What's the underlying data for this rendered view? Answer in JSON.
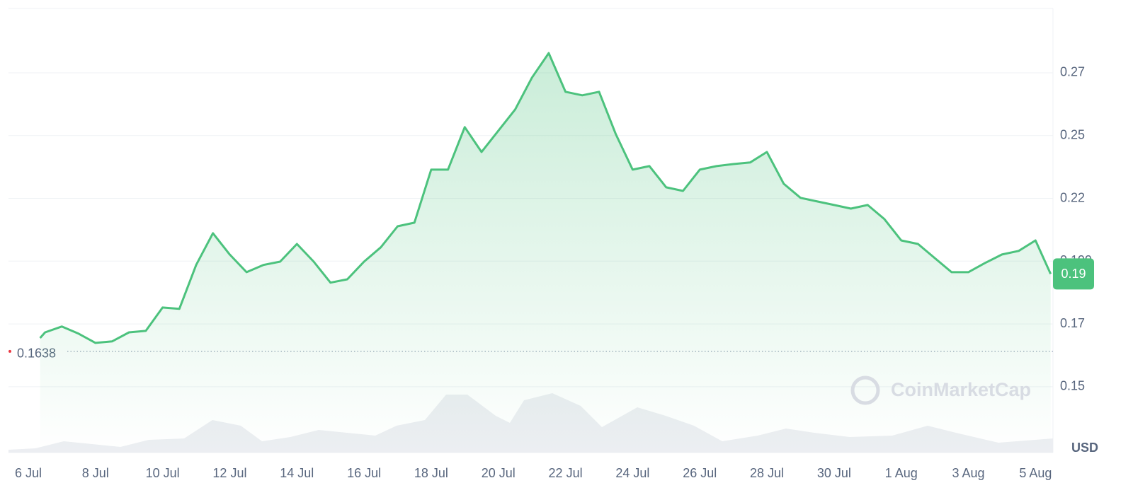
{
  "chart_data": {
    "type": "area",
    "watermark": "CoinMarketCap",
    "currency": "USD",
    "color": "#4cc27d",
    "grid": true,
    "xlim": [
      -0.59,
      30.52
    ],
    "xticks": [
      {
        "value": 0,
        "label": "6 Jul"
      },
      {
        "value": 2,
        "label": "8 Jul"
      },
      {
        "value": 4,
        "label": "10 Jul"
      },
      {
        "value": 6,
        "label": "12 Jul"
      },
      {
        "value": 8,
        "label": "14 Jul"
      },
      {
        "value": 10,
        "label": "16 Jul"
      },
      {
        "value": 12,
        "label": "18 Jul"
      },
      {
        "value": 14,
        "label": "20 Jul"
      },
      {
        "value": 16,
        "label": "22 Jul"
      },
      {
        "value": 18,
        "label": "24 Jul"
      },
      {
        "value": 20,
        "label": "26 Jul"
      },
      {
        "value": 22,
        "label": "28 Jul"
      },
      {
        "value": 24,
        "label": "30 Jul"
      },
      {
        "value": 26,
        "label": "1 Aug"
      },
      {
        "value": 28,
        "label": "3 Aug"
      },
      {
        "value": 30,
        "label": "5 Aug"
      }
    ],
    "ylim": [
      0.1243,
      0.2976
    ],
    "yticks": [
      0.15,
      {
        "value": 0.1745,
        "label": "0.17"
      },
      0.199,
      {
        "value": 0.2235,
        "label": "0.22"
      },
      {
        "value": 0.248,
        "label": "0.25"
      },
      {
        "value": 0.2725,
        "label": "0.27"
      }
    ],
    "reference_line": 0.1638,
    "price_tag": {
      "value": 0.194,
      "label": "0.19"
    },
    "x": [
      0.35,
      0.5,
      1,
      1.5,
      2,
      2.5,
      3,
      3.5,
      4,
      4.5,
      5,
      5.5,
      6,
      6.5,
      7,
      7.5,
      8,
      8.5,
      9,
      9.5,
      10,
      10.5,
      11,
      11.5,
      12,
      12.5,
      13,
      13.5,
      14,
      14.5,
      15,
      15.5,
      16,
      16.5,
      17,
      17.5,
      18,
      18.5,
      19,
      19.5,
      20,
      20.5,
      21,
      21.5,
      22,
      22.5,
      23,
      23.5,
      24,
      24.5,
      25,
      25.5,
      26,
      26.5,
      27,
      27.5,
      28,
      28.5,
      29,
      29.5,
      30,
      30.45
    ],
    "values": [
      0.169,
      0.1712,
      0.1735,
      0.1707,
      0.1671,
      0.1677,
      0.1712,
      0.1718,
      0.1809,
      0.1804,
      0.1975,
      0.2099,
      0.2016,
      0.1947,
      0.1975,
      0.1988,
      0.2057,
      0.1988,
      0.1906,
      0.1919,
      0.1988,
      0.2044,
      0.2126,
      0.214,
      0.2347,
      0.2347,
      0.2513,
      0.2416,
      0.2499,
      0.2582,
      0.2706,
      0.2802,
      0.2651,
      0.2637,
      0.2651,
      0.2485,
      0.2347,
      0.2361,
      0.2278,
      0.2264,
      0.2347,
      0.2361,
      0.2369,
      0.2375,
      0.2416,
      0.2292,
      0.2237,
      0.2223,
      0.2209,
      0.2195,
      0.2209,
      0.2154,
      0.2071,
      0.2057,
      0.2002,
      0.1947,
      0.1947,
      0.1983,
      0.2016,
      0.203,
      0.2071,
      0.194
    ]
  }
}
